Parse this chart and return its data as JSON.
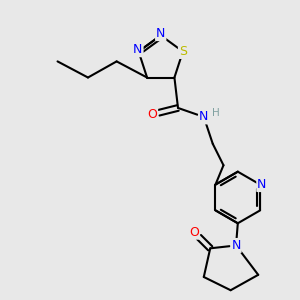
{
  "bg_color": "#e8e8e8",
  "bond_color": "#000000",
  "atom_colors": {
    "N": "#0000ff",
    "S": "#bbbb00",
    "O": "#ff0000",
    "C": "#000000",
    "H": "#7fa0a0"
  },
  "line_width": 1.5,
  "font_size": 8.5
}
